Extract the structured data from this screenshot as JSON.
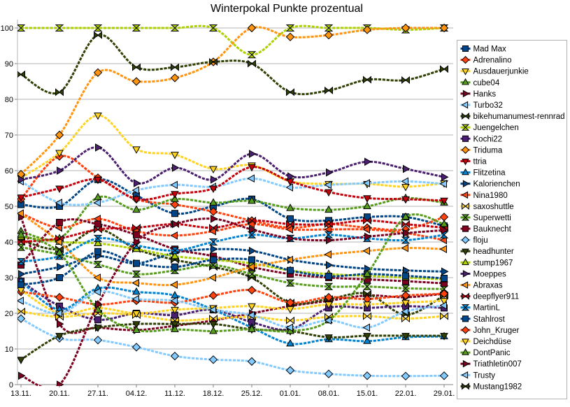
{
  "title": "Winterpokal Punkte prozentual",
  "chart_data": {
    "type": "line",
    "smooth": true,
    "grid": "horizontal",
    "legend_position": "right",
    "title": "Winterpokal Punkte prozentual",
    "xlabel": "",
    "ylabel": "",
    "ylim": [
      0,
      100
    ],
    "y_ticks": [
      0,
      10,
      20,
      30,
      40,
      50,
      60,
      70,
      80,
      90,
      100
    ],
    "x_labels": [
      "13.11.",
      "20.11.",
      "27.11.",
      "04.12.",
      "11.12.",
      "18.12.",
      "25.12.",
      "01.01.",
      "08.01.",
      "15.01.",
      "22.01.",
      "29.01."
    ],
    "grid_color": "#b3b3b3",
    "axis_color": "#808080",
    "series": [
      {
        "name": "Mad Max",
        "color": "#004586",
        "marker": "square",
        "values": [
          50.5,
          50,
          57.5,
          53,
          48,
          50,
          52,
          46.5,
          46,
          47,
          47,
          44.5
        ]
      },
      {
        "name": "Adrenalino",
        "color": "#FF420E",
        "marker": "diamond",
        "values": [
          52,
          64,
          58,
          52,
          50.5,
          48.5,
          46,
          44,
          45,
          44,
          43.5,
          47
        ]
      },
      {
        "name": "Ausdauerjunkie",
        "color": "#FFD320",
        "marker": "triangle-down",
        "values": [
          58,
          65,
          75.5,
          66,
          64.5,
          60.5,
          61.5,
          57,
          56.3,
          56.3,
          55.5,
          56.5
        ]
      },
      {
        "name": "cube04",
        "color": "#579D1C",
        "marker": "triangle-up",
        "values": [
          43,
          41,
          52.5,
          49,
          52,
          51,
          51.5,
          49.5,
          49,
          50,
          52.3,
          51
        ]
      },
      {
        "name": "Hanks",
        "color": "#7E0021",
        "marker": "triangle-right",
        "values": [
          47,
          17,
          16,
          15.3,
          16.5,
          18,
          20,
          22,
          23.5,
          25,
          24.5,
          25.5
        ]
      },
      {
        "name": "Turbo32",
        "color": "#83CAFF",
        "marker": "triangle-left",
        "values": [
          57,
          51,
          51,
          54.5,
          56,
          55.5,
          57.8,
          55.3,
          56,
          56.5,
          57,
          56.3
        ]
      },
      {
        "name": "bikehumanumest-rennrad",
        "color": "#314004",
        "marker": "bowtie",
        "values": [
          40.5,
          38,
          43.5,
          38,
          35,
          33,
          30,
          23,
          24,
          25.5,
          19.6,
          25
        ]
      },
      {
        "name": "Juengelchen",
        "color": "#AECF00",
        "marker": "hourglass",
        "values": [
          100,
          100,
          100,
          100,
          100,
          100,
          92.5,
          100,
          100,
          100,
          99.5,
          100
        ]
      },
      {
        "name": "Kochi22",
        "color": "#4B1F6F",
        "marker": "square",
        "values": [
          29,
          22,
          18.2,
          20,
          19.5,
          21,
          17.5,
          15.5,
          21.5,
          21.5,
          22,
          21.5
        ]
      },
      {
        "name": "Triduma",
        "color": "#FF950E",
        "marker": "diamond",
        "values": [
          59,
          70,
          87.5,
          85,
          86,
          90.5,
          100,
          97.5,
          98,
          99.5,
          100,
          100
        ]
      },
      {
        "name": "ttria",
        "color": "#C5000B",
        "marker": "triangle-down",
        "values": [
          52.5,
          55,
          57.5,
          52,
          53.5,
          55,
          61,
          57,
          54,
          52.3,
          52,
          51.6
        ]
      },
      {
        "name": "Flitzetina",
        "color": "#0084D1",
        "marker": "triangle-up",
        "values": [
          29,
          21,
          27,
          26,
          25,
          21,
          16,
          11.5,
          12.7,
          12.2,
          13.3,
          13.5
        ]
      },
      {
        "name": "Kalorienchen",
        "color": "#004586",
        "marker": "triangle-right",
        "values": [
          31,
          33,
          36,
          34,
          37,
          38,
          37.5,
          35,
          33.5,
          32.5,
          32,
          31.7
        ]
      },
      {
        "name": "Nina1980",
        "color": "#FF420E",
        "marker": "triangle-left",
        "values": [
          48,
          44,
          46.5,
          43,
          41.8,
          43,
          45,
          43.5,
          43.5,
          43.5,
          42.5,
          40.5
        ]
      },
      {
        "name": "saxoshuttle",
        "color": "#FFD320",
        "marker": "bowtie",
        "values": [
          20.5,
          19,
          20,
          19.5,
          18,
          18.5,
          19,
          18,
          19,
          19.2,
          18.5,
          19.2
        ]
      },
      {
        "name": "Superwetti",
        "color": "#579D1C",
        "marker": "hourglass",
        "values": [
          38.5,
          36.5,
          33.7,
          31,
          32,
          33.5,
          31,
          28.5,
          27.5,
          27.5,
          27,
          26.8
        ]
      },
      {
        "name": "Bauknecht",
        "color": "#7E0021",
        "marker": "square",
        "values": [
          33.5,
          45.5,
          45,
          42,
          38,
          36,
          33,
          31,
          30,
          29.5,
          29,
          28.4
        ]
      },
      {
        "name": "floju",
        "color": "#83CAFF",
        "marker": "diamond",
        "values": [
          18.5,
          13,
          12.5,
          10.5,
          8,
          7,
          6.5,
          4,
          3,
          2.5,
          2.4,
          2.5
        ]
      },
      {
        "name": "headhunter",
        "color": "#314004",
        "marker": "triangle-down",
        "values": [
          7,
          13.7,
          16,
          17,
          17,
          17,
          15.5,
          15,
          13.3,
          13.7,
          13.7,
          13.7
        ]
      },
      {
        "name": "stump1967",
        "color": "#AECF00",
        "marker": "triangle-up",
        "values": [
          41.5,
          40,
          39.6,
          38,
          36,
          35,
          34,
          32,
          31,
          30.5,
          30,
          29.5
        ]
      },
      {
        "name": "Moeppes",
        "color": "#4B1F6F",
        "marker": "triangle-right",
        "values": [
          57.5,
          60,
          66.5,
          56.5,
          60.8,
          57.5,
          64.7,
          58.4,
          59.5,
          62.5,
          60.5,
          58.2
        ]
      },
      {
        "name": "Abraxas",
        "color": "#FF950E",
        "marker": "triangle-left",
        "values": [
          48,
          40,
          30,
          28.5,
          28,
          30,
          33,
          35,
          36.5,
          37.5,
          38.3,
          38
        ]
      },
      {
        "name": "deepflyer911",
        "color": "#C5000B",
        "marker": "bowtie",
        "values": [
          40,
          41,
          43.5,
          44,
          45,
          44,
          46,
          45,
          45,
          46,
          45,
          44
        ]
      },
      {
        "name": "MartinL",
        "color": "#0084D1",
        "marker": "hourglass",
        "values": [
          34.5,
          36,
          41,
          39,
          37.6,
          40,
          42,
          41,
          42,
          41,
          40.5,
          42
        ]
      },
      {
        "name": "Stahlrost",
        "color": "#004586",
        "marker": "square",
        "values": [
          28,
          30,
          37.3,
          34,
          33,
          35,
          35,
          32,
          30.4,
          31,
          30.5,
          29.8
        ]
      },
      {
        "name": "John_Kruger",
        "color": "#FF420E",
        "marker": "diamond",
        "values": [
          26,
          24.5,
          22.5,
          23.5,
          23,
          25,
          26.5,
          23,
          24.5,
          24,
          25,
          25.5
        ]
      },
      {
        "name": "Deichdüse",
        "color": "#FFD320",
        "marker": "triangle-down",
        "values": [
          26.5,
          20,
          21.5,
          20,
          21,
          21.5,
          22,
          21.2,
          22.5,
          22.5,
          23,
          23.5
        ]
      },
      {
        "name": "DontPanic",
        "color": "#579D1C",
        "marker": "triangle-up",
        "values": [
          42,
          37,
          21,
          15.3,
          15.5,
          15,
          15.5,
          15,
          18,
          31,
          47,
          45
        ]
      },
      {
        "name": "Triathletin007",
        "color": "#7E0021",
        "marker": "triangle-right",
        "values": [
          2.5,
          0,
          22.5,
          40,
          45,
          46.5,
          43.5,
          41,
          40.5,
          41.5,
          42.5,
          43.3
        ]
      },
      {
        "name": "Trusty",
        "color": "#83CAFF",
        "marker": "triangle-left",
        "values": [
          23.5,
          20,
          26,
          24,
          23.5,
          21,
          19.5,
          16,
          18,
          16,
          20.5,
          22.2
        ]
      },
      {
        "name": "Mustang1982",
        "color": "#314004",
        "marker": "bowtie",
        "values": [
          87,
          82,
          98,
          89,
          89,
          90.5,
          90,
          82,
          82.5,
          85.5,
          85.4,
          88.5
        ]
      }
    ]
  }
}
